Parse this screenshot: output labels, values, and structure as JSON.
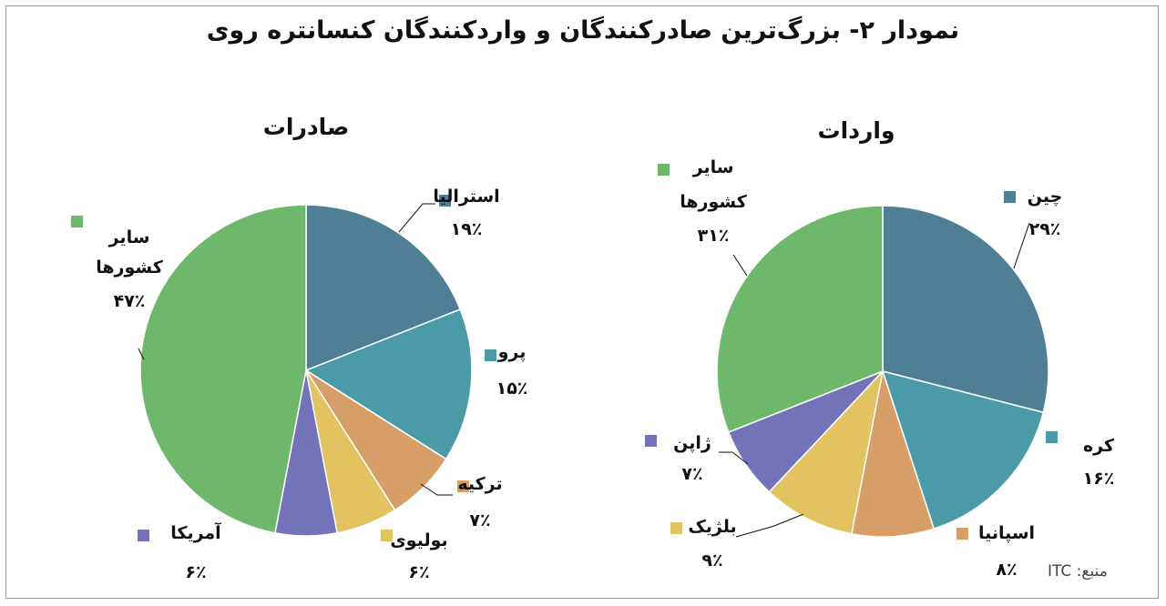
{
  "title": "نمودار ۲- بزرگ‌ترین صادرکنندگان و واردکنندگان کنسانتره روی",
  "source": "منبع: ITC",
  "colors": {
    "steel_blue": "#4f7f94",
    "teal": "#4b9aa8",
    "orange": "#d79e68",
    "yellow": "#e3c261",
    "purple": "#7472b8",
    "green": "#6eb86c"
  },
  "chart_data": [
    {
      "type": "pie",
      "title": "صادرات",
      "series": [
        {
          "name": "استرالیا",
          "value": 19,
          "label": "۱۹٪",
          "color": "#4f7f94"
        },
        {
          "name": "پرو",
          "value": 15,
          "label": "۱۵٪",
          "color": "#4b9aa8"
        },
        {
          "name": "ترکیه",
          "value": 7,
          "label": "۷٪",
          "color": "#d79e68"
        },
        {
          "name": "بولیوی",
          "value": 6,
          "label": "۶٪",
          "color": "#e3c261"
        },
        {
          "name": "آمریکا",
          "value": 6,
          "label": "۶٪",
          "color": "#7472b8"
        },
        {
          "name": "سایر کشورها",
          "value": 47,
          "label": "۴۷٪",
          "color": "#6eb86c"
        }
      ]
    },
    {
      "type": "pie",
      "title": "واردات",
      "series": [
        {
          "name": "چین",
          "value": 29,
          "label": "۲۹٪",
          "color": "#4f7f94"
        },
        {
          "name": "کره",
          "value": 16,
          "label": "۱۶٪",
          "color": "#4b9aa8"
        },
        {
          "name": "اسپانیا",
          "value": 8,
          "label": "۸٪",
          "color": "#d79e68"
        },
        {
          "name": "بلژیک",
          "value": 9,
          "label": "۹٪",
          "color": "#e3c261"
        },
        {
          "name": "ژاپن",
          "value": 7,
          "label": "۷٪",
          "color": "#7472b8"
        },
        {
          "name": "سایر کشورها",
          "value": 31,
          "label": "۳۱٪",
          "color": "#6eb86c"
        }
      ]
    }
  ]
}
